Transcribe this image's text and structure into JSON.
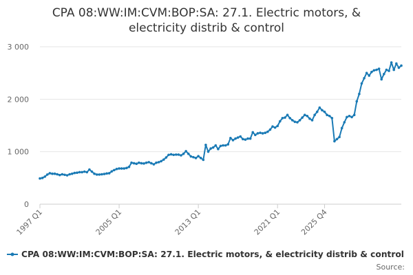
{
  "chart_data": {
    "type": "line",
    "title": "CPA 08:WW:IM:CVM:BOP:SA: 27.1. Electric motors, & electricity distrib & control",
    "title_lines": [
      "CPA 08:WW:IM:CVM:BOP:SA: 27.1. Electric motors, &",
      "electricity distrib & control"
    ],
    "xlabel": "",
    "ylabel": "",
    "ylim": [
      0,
      3000
    ],
    "y_ticks": [
      {
        "value": 0,
        "label": "0"
      },
      {
        "value": 1000,
        "label": "1 000"
      },
      {
        "value": 2000,
        "label": "2 000"
      },
      {
        "value": 3000,
        "label": "3 000"
      }
    ],
    "x_ticks": [
      "1997 Q1",
      "2005 Q1",
      "2013 Q1",
      "2021 Q1",
      "2025 Q4"
    ],
    "grid": true,
    "color": "#1a7ab5",
    "legend_position": "bottom",
    "series": [
      {
        "name": "CPA 08:WW:IM:CVM:BOP:SA: 27.1. Electric motors, & electricity distrib & control",
        "start": "1997 Q1",
        "frequency": "quarterly",
        "values": [
          490,
          500,
          525,
          565,
          590,
          580,
          580,
          570,
          555,
          570,
          560,
          550,
          570,
          580,
          595,
          600,
          610,
          610,
          620,
          610,
          660,
          620,
          580,
          565,
          565,
          570,
          575,
          585,
          590,
          625,
          650,
          670,
          680,
          680,
          680,
          690,
          710,
          790,
          780,
          770,
          790,
          780,
          775,
          790,
          800,
          780,
          760,
          790,
          800,
          820,
          850,
          890,
          940,
          950,
          940,
          945,
          945,
          930,
          960,
          1010,
          960,
          910,
          895,
          880,
          915,
          880,
          845,
          1130,
          1000,
          1060,
          1080,
          1120,
          1050,
          1110,
          1120,
          1120,
          1140,
          1260,
          1220,
          1250,
          1270,
          1290,
          1240,
          1230,
          1250,
          1250,
          1370,
          1320,
          1350,
          1360,
          1350,
          1360,
          1380,
          1420,
          1480,
          1460,
          1490,
          1580,
          1640,
          1650,
          1700,
          1640,
          1600,
          1570,
          1560,
          1600,
          1650,
          1700,
          1680,
          1630,
          1600,
          1700,
          1760,
          1840,
          1790,
          1760,
          1700,
          1680,
          1640,
          1200,
          1240,
          1280,
          1450,
          1560,
          1660,
          1680,
          1660,
          1700,
          1960,
          2100,
          2300,
          2400,
          2500,
          2450,
          2520,
          2550,
          2560,
          2580,
          2380,
          2480,
          2560,
          2540,
          2700,
          2560,
          2680,
          2600,
          2640
        ]
      }
    ],
    "source_label": "Source:"
  }
}
